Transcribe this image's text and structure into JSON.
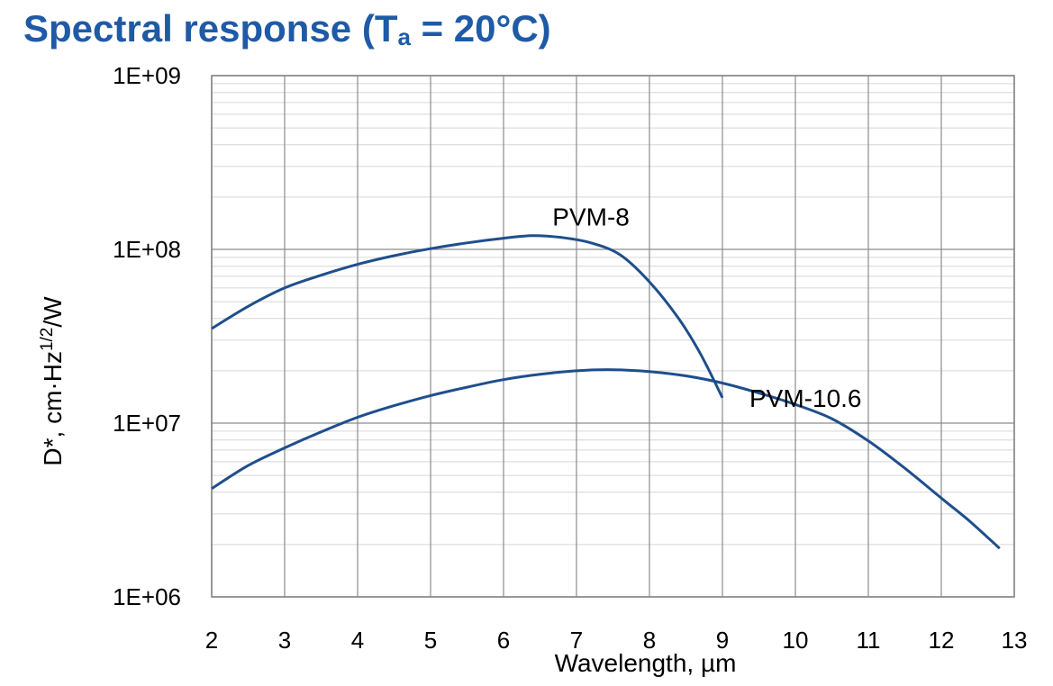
{
  "title": {
    "prefix": "Spectral response (T",
    "subscript": "a",
    "suffix": " = 20°C)"
  },
  "chart_data": {
    "type": "line",
    "title": "Spectral response (Ta = 20°C)",
    "xlabel": "Wavelength, µm",
    "ylabel": {
      "main": "D*, cm·Hz",
      "superscript": "1/2",
      "unit": "/W"
    },
    "xlim": [
      2,
      13
    ],
    "ylim": [
      1000000,
      1000000000
    ],
    "yscale": "log",
    "grid": true,
    "x_ticks": [
      2,
      3,
      4,
      5,
      6,
      7,
      8,
      9,
      10,
      11,
      12,
      13
    ],
    "x_tick_labels": [
      "2",
      "3",
      "4",
      "5",
      "6",
      "7",
      "8",
      "9",
      "10",
      "11",
      "12",
      "13"
    ],
    "y_ticks": [
      1000000,
      10000000,
      100000000,
      1000000000
    ],
    "y_tick_labels": [
      "1E+06",
      "1E+07",
      "1E+08",
      "1E+09"
    ],
    "series": [
      {
        "name": "PVM-8",
        "label": "PVM-8",
        "color": "#1f4e8c",
        "x": [
          2,
          2.5,
          3,
          3.5,
          4,
          4.5,
          5,
          5.5,
          6,
          6.4,
          6.8,
          7.2,
          7.6,
          8.0,
          8.4,
          8.7,
          9.0
        ],
        "y": [
          35000000,
          47000000,
          60000000,
          71000000,
          82000000,
          92000000,
          101000000,
          109000000,
          116000000,
          120000000,
          117000000,
          109000000,
          93000000,
          65000000,
          40000000,
          25000000,
          14000000
        ]
      },
      {
        "name": "PVM-10.6",
        "label": "PVM-10.6",
        "color": "#1f4e8c",
        "x": [
          2,
          2.5,
          3,
          3.5,
          4,
          4.5,
          5,
          5.5,
          6,
          6.5,
          7,
          7.5,
          8,
          8.5,
          9,
          9.5,
          10,
          10.5,
          11,
          11.5,
          12,
          12.4,
          12.8
        ],
        "y": [
          4200000,
          5700000,
          7200000,
          8900000,
          10800000,
          12600000,
          14400000,
          16100000,
          17800000,
          19100000,
          20000000,
          20300000,
          19800000,
          18700000,
          17000000,
          14900000,
          12800000,
          10600000,
          7900000,
          5500000,
          3700000,
          2700000,
          1900000
        ]
      }
    ]
  }
}
